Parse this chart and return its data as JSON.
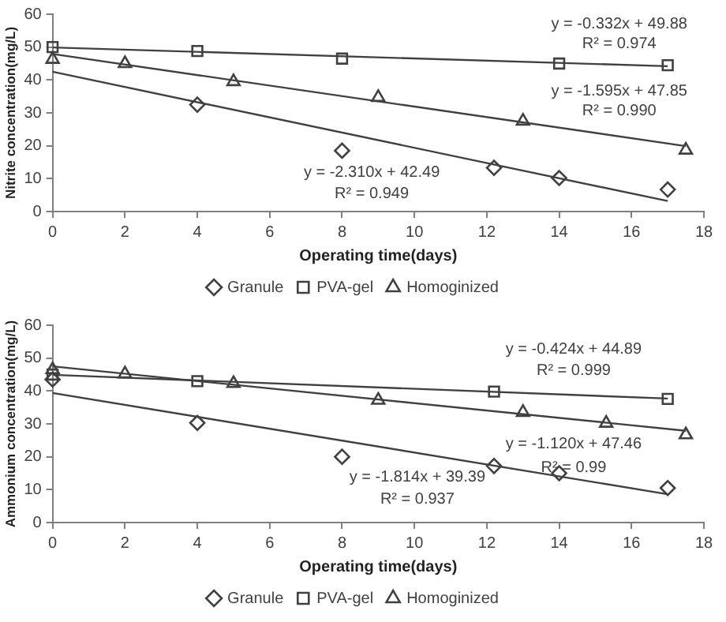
{
  "chart_data": [
    {
      "type": "scatter",
      "ylabel": "Nitrite concentration(mg/L)",
      "xlabel": "Operating time(days)",
      "xlim": [
        0,
        18
      ],
      "xticks": [
        0,
        2,
        4,
        6,
        8,
        10,
        12,
        14,
        16,
        18
      ],
      "ylim": [
        0,
        60
      ],
      "yticks": [
        0,
        10,
        20,
        30,
        40,
        50,
        60
      ],
      "grid": false,
      "legend": "bottom",
      "series": [
        {
          "name": "Granule",
          "color": "#404040",
          "marker": "diamond",
          "x": [
            4,
            8,
            12.2,
            14,
            17
          ],
          "values": [
            32.5,
            18.5,
            13.3,
            10.2,
            6.7
          ]
        },
        {
          "name": "PVA-gel",
          "color": "#404040",
          "marker": "square",
          "x": [
            0,
            4,
            8,
            14,
            17
          ],
          "values": [
            50,
            48.8,
            46.5,
            45,
            44.5
          ]
        },
        {
          "name": "Homoginized",
          "color": "#404040",
          "marker": "triangle",
          "x": [
            0,
            2,
            5,
            9,
            13,
            17.5
          ],
          "values": [
            46.3,
            45,
            39.5,
            34.7,
            27.5,
            18.7
          ]
        },
        {
          "type": "line",
          "color": "#404040",
          "marker": "none",
          "x": [
            0,
            17
          ],
          "values": [
            42.5,
            3.2
          ]
        },
        {
          "type": "line",
          "color": "#404040",
          "marker": "none",
          "x": [
            0,
            17
          ],
          "values": [
            49.9,
            44.2
          ]
        },
        {
          "type": "line",
          "color": "#404040",
          "marker": "none",
          "x": [
            0,
            17.5
          ],
          "values": [
            47.9,
            19.9
          ]
        }
      ],
      "annotations": [
        "y = -0.332x + 49.88",
        "R² = 0.974",
        "y = -1.595x + 47.85",
        "R² = 0.990",
        "y = -2.310x + 42.49",
        "R² = 0.949"
      ]
    },
    {
      "type": "scatter",
      "ylabel": "Ammonium concentration(mg/L)",
      "xlabel": "Operating time(days)",
      "xlim": [
        0,
        18
      ],
      "xticks": [
        0,
        2,
        4,
        6,
        8,
        10,
        12,
        14,
        16,
        18
      ],
      "ylim": [
        0,
        60
      ],
      "yticks": [
        0,
        10,
        20,
        30,
        40,
        50,
        60
      ],
      "grid": false,
      "legend": "bottom",
      "series": [
        {
          "name": "Granule",
          "color": "#404040",
          "marker": "diamond",
          "x": [
            0,
            4,
            8,
            12.2,
            14,
            17
          ],
          "values": [
            43.5,
            30.3,
            20,
            17.2,
            15,
            10.5
          ]
        },
        {
          "name": "PVA-gel",
          "color": "#404040",
          "marker": "square",
          "x": [
            0,
            4,
            12.2,
            17
          ],
          "values": [
            45,
            43,
            39.8,
            37.6
          ]
        },
        {
          "name": "Homoginized",
          "color": "#404040",
          "marker": "triangle",
          "x": [
            0,
            2,
            5,
            9,
            13,
            15.3,
            17.5
          ],
          "values": [
            46.5,
            45.2,
            42.3,
            37.2,
            33.5,
            30.2,
            26.7
          ]
        },
        {
          "type": "line",
          "color": "#404040",
          "marker": "none",
          "x": [
            0,
            17
          ],
          "values": [
            39.4,
            8.6
          ]
        },
        {
          "type": "line",
          "color": "#404040",
          "marker": "none",
          "x": [
            0,
            17
          ],
          "values": [
            44.9,
            37.7
          ]
        },
        {
          "type": "line",
          "color": "#404040",
          "marker": "none",
          "x": [
            0,
            17.5
          ],
          "values": [
            47.5,
            27.9
          ]
        }
      ],
      "annotations": [
        "y = -0.424x + 44.89",
        "R² = 0.999",
        "y = -1.120x + 47.46",
        "R² = 0.99",
        "y = -1.814x + 39.39",
        "R² = 0.937"
      ]
    }
  ]
}
